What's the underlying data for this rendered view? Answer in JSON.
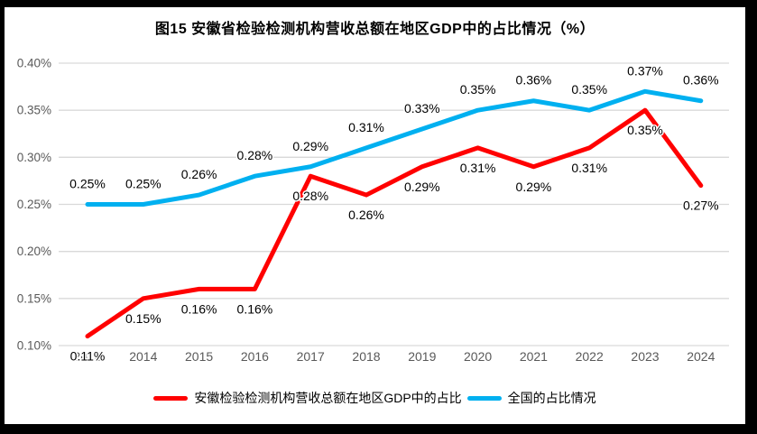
{
  "chart_data": {
    "type": "line",
    "title": "图15 安徽省检验检测机构营收总额在地区GDP中的占比情况（%）",
    "categories": [
      "2013",
      "2014",
      "2015",
      "2016",
      "2017",
      "2018",
      "2019",
      "2020",
      "2021",
      "2022",
      "2023",
      "2024"
    ],
    "series": [
      {
        "name": "全国的占比情况",
        "color": "#00B0F0",
        "values": [
          0.25,
          0.25,
          0.26,
          0.28,
          0.29,
          0.31,
          0.33,
          0.35,
          0.36,
          0.35,
          0.37,
          0.36
        ],
        "labels": [
          "0.25%",
          "0.25%",
          "0.26%",
          "0.28%",
          "0.29%",
          "0.31%",
          "0.33%",
          "0.35%",
          "0.36%",
          "0.35%",
          "0.37%",
          "0.36%"
        ],
        "label_position": "above"
      },
      {
        "name": "安徽检验检测机构营收总额在地区GDP中的占比",
        "color": "#FF0000",
        "values": [
          0.11,
          0.15,
          0.16,
          0.16,
          0.28,
          0.26,
          0.29,
          0.31,
          0.29,
          0.31,
          0.35,
          0.27
        ],
        "labels": [
          "0.11%",
          "0.15%",
          "0.16%",
          "0.16%",
          "0.28%",
          "0.26%",
          "0.29%",
          "0.31%",
          "0.29%",
          "0.31%",
          "0.35%",
          "0.27%"
        ],
        "label_position": "below"
      }
    ],
    "ylim": [
      0.1,
      0.4
    ],
    "ytick_step": 0.05,
    "ytick_labels": [
      "0.40%",
      "0.35%",
      "0.30%",
      "0.25%",
      "0.20%",
      "0.15%",
      "0.10%"
    ],
    "value_suffix": "%",
    "grid": "horizontal",
    "legend_position": "bottom",
    "legend_order": [
      1,
      0
    ],
    "colors": {
      "grid_line": "#D9D9D9",
      "axis_text": "#595959",
      "data_label_text": "#000000",
      "background": "#FFFFFF",
      "frame_border": "#000000"
    }
  }
}
